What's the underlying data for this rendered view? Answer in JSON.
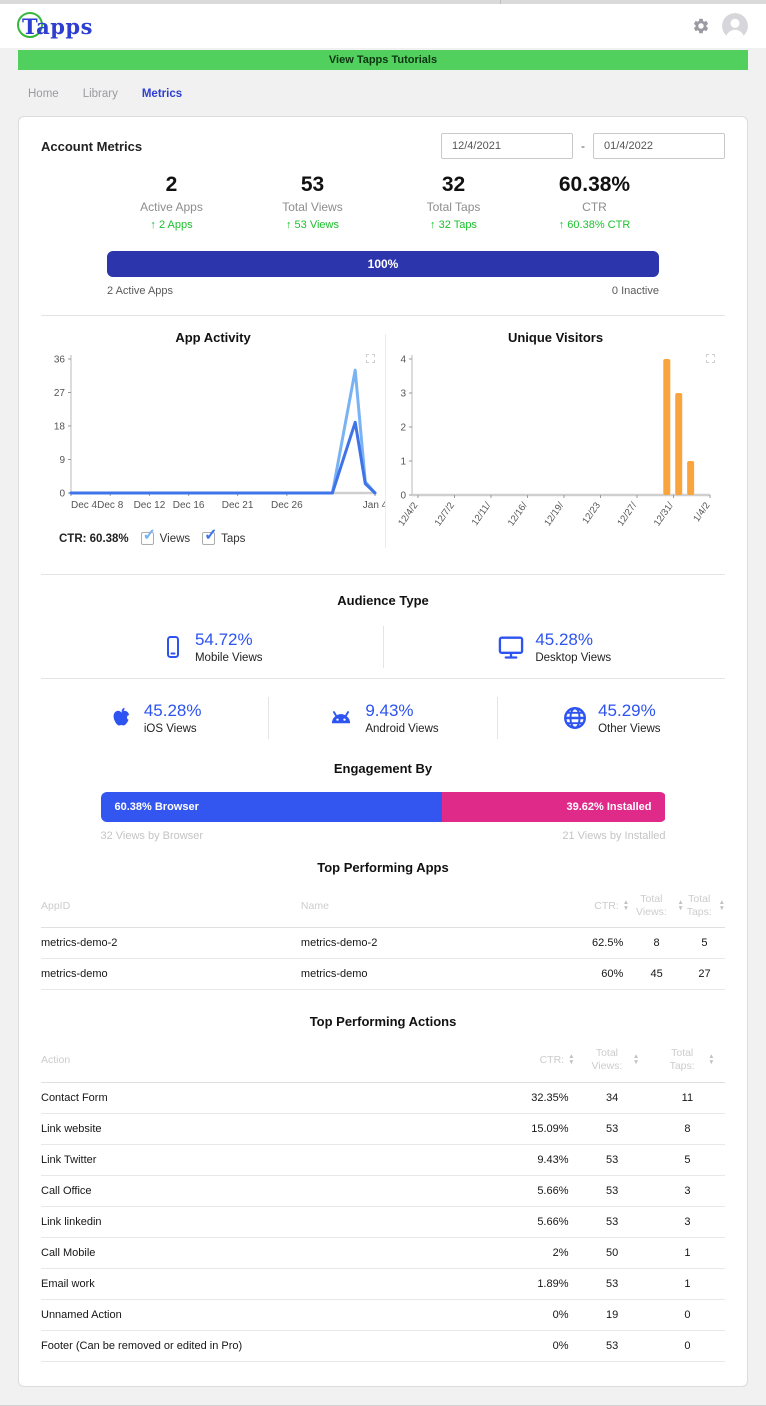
{
  "header": {
    "logo_text": "Tapps"
  },
  "banner": {
    "label": "View Tapps Tutorials"
  },
  "nav": {
    "items": [
      {
        "label": "Home",
        "active": false
      },
      {
        "label": "Library",
        "active": false
      },
      {
        "label": "Metrics",
        "active": true
      }
    ]
  },
  "account": {
    "title": "Account Metrics",
    "date_from": "12/4/2021",
    "date_separator": "-",
    "date_to": "01/4/2022",
    "stats": [
      {
        "value": "2",
        "label": "Active Apps",
        "delta": "↑ 2 Apps"
      },
      {
        "value": "53",
        "label": "Total Views",
        "delta": "↑ 53 Views"
      },
      {
        "value": "32",
        "label": "Total Taps",
        "delta": "↑ 32 Taps"
      },
      {
        "value": "60.38%",
        "label": "CTR",
        "delta": "↑ 60.38% CTR"
      }
    ],
    "active_bar": {
      "percent_label": "100%",
      "left_label": "2 Active Apps",
      "right_label": "0 Inactive"
    }
  },
  "chart_data": [
    {
      "type": "line",
      "title": "App Activity",
      "ylim": [
        0,
        36
      ],
      "yticks": [
        0,
        9,
        18,
        27,
        36
      ],
      "xticks": [
        {
          "f": 0.0,
          "label": "Dec 4"
        },
        {
          "f": 0.129,
          "label": "Dec 8"
        },
        {
          "f": 0.258,
          "label": "Dec 12"
        },
        {
          "f": 0.387,
          "label": "Dec 16"
        },
        {
          "f": 0.548,
          "label": "Dec 21"
        },
        {
          "f": 0.71,
          "label": "Dec 26"
        },
        {
          "f": 1.0,
          "label": "Jan 4"
        }
      ],
      "series": [
        {
          "name": "Views",
          "color": "#79b3f4",
          "points": [
            [
              0,
              0
            ],
            [
              0.73,
              0
            ],
            [
              0.86,
              0
            ],
            [
              0.935,
              33
            ],
            [
              0.968,
              3
            ],
            [
              1,
              0
            ]
          ]
        },
        {
          "name": "Taps",
          "color": "#3f74e8",
          "points": [
            [
              0,
              0
            ],
            [
              0.73,
              0
            ],
            [
              0.86,
              0
            ],
            [
              0.935,
              19
            ],
            [
              0.968,
              2.5
            ],
            [
              1,
              0
            ]
          ]
        }
      ],
      "legend_ctr": "CTR: 60.38%",
      "grid": false,
      "legend_position": "bottom"
    },
    {
      "type": "bar",
      "title": "Unique Visitors",
      "ylim": [
        0,
        4
      ],
      "yticks": [
        0,
        1,
        2,
        3,
        4
      ],
      "xticks": [
        {
          "f": 0.02,
          "label": "12/4/2"
        },
        {
          "f": 0.1425,
          "label": "12/7/2"
        },
        {
          "f": 0.265,
          "label": "12/11/"
        },
        {
          "f": 0.3875,
          "label": "12/16/"
        },
        {
          "f": 0.51,
          "label": "12/19/"
        },
        {
          "f": 0.6325,
          "label": "12/23"
        },
        {
          "f": 0.755,
          "label": "12/27/"
        },
        {
          "f": 0.8775,
          "label": "12/31/"
        },
        {
          "f": 1.0,
          "label": "1/4/2"
        }
      ],
      "bars": [
        {
          "f": 0.855,
          "value": 4
        },
        {
          "f": 0.895,
          "value": 3
        },
        {
          "f": 0.935,
          "value": 1
        }
      ],
      "color": "#f9a43c",
      "grid": false
    }
  ],
  "audience": {
    "title": "Audience Type",
    "row1": [
      {
        "icon": "mobile-icon",
        "percent": "54.72%",
        "label": "Mobile Views"
      },
      {
        "icon": "desktop-icon",
        "percent": "45.28%",
        "label": "Desktop Views"
      }
    ],
    "row2": [
      {
        "icon": "apple-icon",
        "percent": "45.28%",
        "label": "iOS Views"
      },
      {
        "icon": "android-icon",
        "percent": "9.43%",
        "label": "Android Views"
      },
      {
        "icon": "globe-icon",
        "percent": "45.29%",
        "label": "Other Views"
      }
    ]
  },
  "engagement": {
    "title": "Engagement By",
    "segments": [
      {
        "label": "60.38% Browser",
        "pct": 60.38,
        "color": "#3355f0"
      },
      {
        "label": "39.62% Installed",
        "pct": 39.62,
        "color": "#e02a8a"
      }
    ],
    "sub_left": "32 Views by Browser",
    "sub_right": "21 Views by Installed"
  },
  "tables": [
    {
      "title": "Top Performing Apps",
      "columns": [
        {
          "label": "AppID",
          "align": "al",
          "width": "38%",
          "sortable": false
        },
        {
          "label": "Name",
          "align": "al",
          "width": "38%",
          "sortable": false
        },
        {
          "label": "CTR:",
          "align": "ar",
          "width": "10%",
          "sortable": true
        },
        {
          "label": "Total Views:",
          "align": "ac",
          "width": "8%",
          "sortable": true
        },
        {
          "label": "Total Taps:",
          "align": "ac",
          "width": "6%",
          "sortable": true
        }
      ],
      "rows": [
        [
          "metrics-demo-2",
          "metrics-demo-2",
          "62.5%",
          "8",
          "5"
        ],
        [
          "metrics-demo",
          "metrics-demo",
          "60%",
          "45",
          "27"
        ]
      ]
    },
    {
      "title": "Top Performing Actions",
      "columns": [
        {
          "label": "Action",
          "align": "al",
          "width": "56%",
          "sortable": false
        },
        {
          "label": "CTR:",
          "align": "ar",
          "width": "22%",
          "sortable": true
        },
        {
          "label": "Total Views:",
          "align": "ac",
          "width": "11%",
          "sortable": true
        },
        {
          "label": "Total Taps:",
          "align": "ac",
          "width": "11%",
          "sortable": true
        }
      ],
      "rows": [
        [
          "Contact Form",
          "32.35%",
          "34",
          "11"
        ],
        [
          "Link website",
          "15.09%",
          "53",
          "8"
        ],
        [
          "Link Twitter",
          "9.43%",
          "53",
          "5"
        ],
        [
          "Call Office",
          "5.66%",
          "53",
          "3"
        ],
        [
          "Link linkedin",
          "5.66%",
          "53",
          "3"
        ],
        [
          "Call Mobile",
          "2%",
          "50",
          "1"
        ],
        [
          "Email work",
          "1.89%",
          "53",
          "1"
        ],
        [
          "Unnamed Action",
          "0%",
          "19",
          "0"
        ],
        [
          "Footer (Can be removed or edited in Pro)",
          "0%",
          "53",
          "0"
        ]
      ]
    }
  ],
  "colors": {
    "accent_blue": "#2d53f0",
    "indigo_bar": "#2c35ab",
    "banner_green": "#52d05e",
    "delta_green": "#1dc12e",
    "views_line": "#79b3f4",
    "taps_line": "#3f74e8",
    "visitors_orange": "#f9a43c",
    "engagement_pink": "#e02a8a"
  }
}
